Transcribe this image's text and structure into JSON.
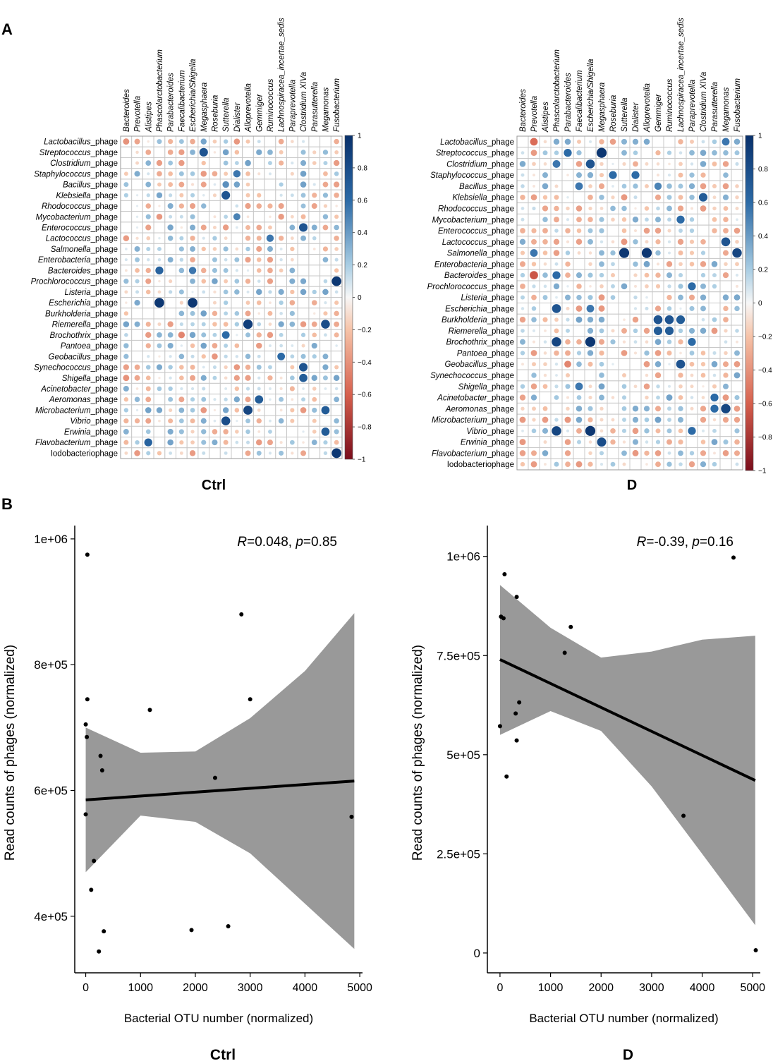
{
  "panel_labels": {
    "a": "A",
    "b": "B"
  },
  "colors": {
    "strong_pos": "#08306b",
    "mid_pos": "#2c6aa6",
    "light_pos": "#a9cde3",
    "neutral": "#f7f7f7",
    "light_neg": "#f6c3a8",
    "mid_neg": "#d6604d",
    "strong_neg": "#7a0d1b",
    "cell_border": "#c8c8c8",
    "ribbon": "#999999",
    "line": "#000000"
  },
  "chart_data": [
    {
      "type": "heatmap",
      "subtype": "correlation-circle-matrix",
      "title": "Ctrl",
      "columns": [
        "Bacteroides",
        "Prevotella",
        "Alistipes",
        "Phascolarctobacterium",
        "Parabacteroides",
        "Faecalibacterium",
        "Escherichia/Shigella",
        "Megasphaera",
        "Roseburia",
        "Sutterella",
        "Dialister",
        "Alloprevotella",
        "Gemmiger",
        "Ruminococcus",
        "Lachnospiracea_incertae_sedis",
        "Paraprevotella",
        "Clostridium XIVa",
        "Parasutterella",
        "Megamonas",
        "Fusobacterium"
      ],
      "rows": [
        "Lactobacillus_phage",
        "Streptococcus_phage",
        "Clostridium_phage",
        "Staphylococcus_phage",
        "Bacillus_phage",
        "Klebsiella_phage",
        "Rhodococcus_phage",
        "Mycobacterium_phage",
        "Enterococcus_phage",
        "Lactococcus_phage",
        "Salmonella_phage",
        "Enterobacteria_phage",
        "Bacteroides_phage",
        "Prochlorococcus_phage",
        "Listeria_phage",
        "Escherichia_phage",
        "Burkholderia_phage",
        "Riemerella_phage",
        "Brochothrix_phage",
        "Pantoea_phage",
        "Geobacillus_phage",
        "Synechococcus_phage",
        "Shigella_phage",
        "Acinetobacter_phage",
        "Aeromonas_phage",
        "Microbacterium_phage",
        "Vibrio_phage",
        "Erwinia_phage",
        "Flavobacterium_phage",
        "Iodobacteriophage"
      ],
      "rows_italic_part": [
        "Lactobacillus",
        "Streptococcus",
        "Clostridium",
        "Staphylococcus",
        "Bacillus",
        "Klebsiella",
        "Rhodococcus",
        "Mycobacterium",
        "Enterococcus",
        "Lactococcus",
        "Salmonella",
        "Enterobacteria",
        "Bacteroides",
        "Prochlorococcus",
        "Listeria",
        "Escherichia",
        "Burkholderia",
        "Riemerella",
        "Brochothrix",
        "Pantoea",
        "Geobacillus",
        "Synechococcus",
        "Shigella",
        "Acinetobacter",
        "Aeromonas",
        "Microbacterium",
        "Vibrio",
        "Erwinia",
        "Flavobacterium",
        ""
      ],
      "strong_cells": [
        {
          "row": 1,
          "col": 7,
          "value": 0.75
        },
        {
          "row": 3,
          "col": 10,
          "value": 0.55
        },
        {
          "row": 4,
          "col": 9,
          "value": 0.45
        },
        {
          "row": 5,
          "col": 9,
          "value": 0.75
        },
        {
          "row": 7,
          "col": 10,
          "value": 0.5
        },
        {
          "row": 8,
          "col": 16,
          "value": 0.75
        },
        {
          "row": 9,
          "col": 13,
          "value": 0.55
        },
        {
          "row": 12,
          "col": 3,
          "value": 0.65
        },
        {
          "row": 12,
          "col": 6,
          "value": 0.55
        },
        {
          "row": 13,
          "col": 19,
          "value": 0.95
        },
        {
          "row": 15,
          "col": 3,
          "value": 0.95
        },
        {
          "row": 15,
          "col": 6,
          "value": 0.95
        },
        {
          "row": 17,
          "col": 11,
          "value": 0.9
        },
        {
          "row": 17,
          "col": 18,
          "value": 0.8
        },
        {
          "row": 18,
          "col": 9,
          "value": 0.6
        },
        {
          "row": 18,
          "col": 5,
          "value": -0.45
        },
        {
          "row": 20,
          "col": 14,
          "value": 0.6
        },
        {
          "row": 21,
          "col": 16,
          "value": 0.75
        },
        {
          "row": 22,
          "col": 16,
          "value": 0.7
        },
        {
          "row": 24,
          "col": 12,
          "value": 0.7
        },
        {
          "row": 25,
          "col": 11,
          "value": 0.85
        },
        {
          "row": 25,
          "col": 18,
          "value": 0.7
        },
        {
          "row": 26,
          "col": 9,
          "value": 0.8
        },
        {
          "row": 27,
          "col": 18,
          "value": 0.7
        },
        {
          "row": 28,
          "col": 2,
          "value": 0.65
        },
        {
          "row": 29,
          "col": 19,
          "value": 0.95
        },
        {
          "row": 1,
          "col": 2,
          "value": -0.3
        },
        {
          "row": 0,
          "col": 0,
          "value": -0.4
        },
        {
          "row": 22,
          "col": 0,
          "value": -0.4
        }
      ],
      "colorbar": {
        "range": [
          -1,
          1
        ],
        "ticks": [
          "1",
          "0.8",
          "0.6",
          "0.4",
          "0.2",
          "0",
          "−0.2",
          "−0.4",
          "−0.6",
          "−0.8",
          "−1"
        ]
      }
    },
    {
      "type": "heatmap",
      "subtype": "correlation-circle-matrix",
      "title": "D",
      "columns": [
        "Bacteroides",
        "Prevotella",
        "Alistipes",
        "Phascolarctobacterium",
        "Parabacteroides",
        "Faecalibacterium",
        "Escherichia/Shigella",
        "Megasphaera",
        "Roseburia",
        "Sutterella",
        "Dialister",
        "Alloprevotella",
        "Gemmiger",
        "Ruminococcus",
        "Lachnospiracea_incertae_sedis",
        "Paraprevotella",
        "Clostridium XIVa",
        "Parasutterella",
        "Megamonas",
        "Fusobacterium"
      ],
      "rows": [
        "Lactobacillus_phage",
        "Streptococcus_phage",
        "Clostridium_phage",
        "Staphylococcus_phage",
        "Bacillus_phage",
        "Klebsiella_phage",
        "Rhodococcus_phage",
        "Mycobacterium_phage",
        "Enterococcus_phage",
        "Lactococcus_phage",
        "Salmonella_phage",
        "Enterobacteria_phage",
        "Bacteroides_phage",
        "Prochlorococcus_phage",
        "Listeria_phage",
        "Escherichia_phage",
        "Burkholderia_phage",
        "Riemerella_phage",
        "Brochothrix_phage",
        "Pantoea_phage",
        "Geobacillus_phage",
        "Synechococcus_phage",
        "Shigella_phage",
        "Acinetobacter_phage",
        "Aeromonas_phage",
        "Microbacterium_phage",
        "Vibrio_phage",
        "Erwinia_phage",
        "Flavobacterium_phage",
        "Iodobacteriophage"
      ],
      "rows_italic_part": [
        "Lactobacillus",
        "Streptococcus",
        "Clostridium",
        "Staphylococcus",
        "Bacillus",
        "Klebsiella",
        "Rhodococcus",
        "Mycobacterium",
        "Enterococcus",
        "Lactococcus",
        "Salmonella",
        "Enterobacteria",
        "Bacteroides",
        "Prochlorococcus",
        "Listeria",
        "Escherichia",
        "Burkholderia",
        "Riemerella",
        "Brochothrix",
        "Pantoea",
        "Geobacillus",
        "Synechococcus",
        "Shigella",
        "Acinetobacter",
        "Aeromonas",
        "Microbacterium",
        "Vibrio",
        "Erwinia",
        "Flavobacterium",
        ""
      ],
      "strong_cells": [
        {
          "row": 0,
          "col": 1,
          "value": -0.55
        },
        {
          "row": 0,
          "col": 18,
          "value": 0.55
        },
        {
          "row": 1,
          "col": 4,
          "value": 0.6
        },
        {
          "row": 1,
          "col": 7,
          "value": 0.95
        },
        {
          "row": 2,
          "col": 3,
          "value": 0.55
        },
        {
          "row": 2,
          "col": 6,
          "value": 0.75
        },
        {
          "row": 3,
          "col": 8,
          "value": 0.6
        },
        {
          "row": 3,
          "col": 10,
          "value": 0.6
        },
        {
          "row": 4,
          "col": 5,
          "value": 0.55
        },
        {
          "row": 4,
          "col": 12,
          "value": 0.5
        },
        {
          "row": 5,
          "col": 16,
          "value": 0.7
        },
        {
          "row": 7,
          "col": 14,
          "value": 0.6
        },
        {
          "row": 9,
          "col": 18,
          "value": 0.75
        },
        {
          "row": 10,
          "col": 1,
          "value": 0.55
        },
        {
          "row": 10,
          "col": 9,
          "value": 0.95
        },
        {
          "row": 10,
          "col": 11,
          "value": 0.95
        },
        {
          "row": 10,
          "col": 19,
          "value": 0.85
        },
        {
          "row": 12,
          "col": 1,
          "value": -0.65
        },
        {
          "row": 12,
          "col": 3,
          "value": 0.6
        },
        {
          "row": 13,
          "col": 15,
          "value": 0.6
        },
        {
          "row": 15,
          "col": 3,
          "value": 0.75
        },
        {
          "row": 15,
          "col": 6,
          "value": 0.55
        },
        {
          "row": 16,
          "col": 12,
          "value": 0.75
        },
        {
          "row": 16,
          "col": 13,
          "value": 0.75
        },
        {
          "row": 16,
          "col": 14,
          "value": 0.7
        },
        {
          "row": 17,
          "col": 12,
          "value": 0.7
        },
        {
          "row": 17,
          "col": 13,
          "value": 0.7
        },
        {
          "row": 18,
          "col": 3,
          "value": 0.85
        },
        {
          "row": 18,
          "col": 6,
          "value": 0.95
        },
        {
          "row": 18,
          "col": 15,
          "value": 0.6
        },
        {
          "row": 20,
          "col": 14,
          "value": 0.75
        },
        {
          "row": 20,
          "col": 4,
          "value": -0.45
        },
        {
          "row": 22,
          "col": 5,
          "value": 0.55
        },
        {
          "row": 23,
          "col": 17,
          "value": 0.6
        },
        {
          "row": 24,
          "col": 17,
          "value": 0.6
        },
        {
          "row": 24,
          "col": 18,
          "value": 0.85
        },
        {
          "row": 26,
          "col": 3,
          "value": 0.85
        },
        {
          "row": 26,
          "col": 6,
          "value": 0.95
        },
        {
          "row": 26,
          "col": 15,
          "value": 0.6
        },
        {
          "row": 27,
          "col": 7,
          "value": 0.8
        }
      ],
      "colorbar": {
        "range": [
          -1,
          1
        ],
        "ticks": [
          "1",
          "0.8",
          "0.6",
          "0.4",
          "0.2",
          "0",
          "−0.2",
          "−0.4",
          "−0.6",
          "−0.8",
          "−1"
        ]
      }
    },
    {
      "type": "scatter",
      "title": "Ctrl",
      "annotation": {
        "r_label": "R",
        "r_value": "=0.048, ",
        "p_label": "p",
        "p_value": "=0.85"
      },
      "xlabel": "Bacterial OTU number (normalized)",
      "ylabel": "Read counts of phages (normalized)",
      "xlim": [
        -200,
        5050
      ],
      "ylim": [
        310000,
        1010000
      ],
      "xticks": [
        0,
        1000,
        2000,
        3000,
        4000,
        5000
      ],
      "xtick_labels": [
        "0",
        "1000",
        "2000",
        "3000",
        "4000",
        "5000"
      ],
      "yticks": [
        400000,
        600000,
        800000,
        1000000
      ],
      "ytick_labels": [
        "4e+05",
        "6e+05",
        "8e+05",
        "1e+06"
      ],
      "points": [
        [
          30,
          975000
        ],
        [
          30,
          745000
        ],
        [
          0,
          705000
        ],
        [
          20,
          685000
        ],
        [
          270,
          655000
        ],
        [
          300,
          632000
        ],
        [
          0,
          562000
        ],
        [
          150,
          488000
        ],
        [
          100,
          442000
        ],
        [
          330,
          376000
        ],
        [
          240,
          344000
        ],
        [
          1170,
          728000
        ],
        [
          1930,
          378000
        ],
        [
          2360,
          620000
        ],
        [
          2600,
          384000
        ],
        [
          2840,
          880000
        ],
        [
          3000,
          745000
        ],
        [
          4850,
          558000
        ]
      ],
      "fit": {
        "x": [
          0,
          4900
        ],
        "y": [
          585000,
          615000
        ]
      },
      "ci": {
        "x": [
          0,
          1000,
          2000,
          3000,
          4000,
          4900
        ],
        "upper": [
          700000,
          660000,
          662000,
          715000,
          790000,
          882000
        ],
        "lower": [
          470000,
          560000,
          550000,
          500000,
          420000,
          348000
        ]
      }
    },
    {
      "type": "scatter",
      "title": "D",
      "annotation": {
        "r_label": "R",
        "r_value": "=-0.39, ",
        "p_label": "p",
        "p_value": "=0.16"
      },
      "xlabel": "Bacterial OTU number (normalized)",
      "ylabel": "Read counts of phages (normalized)",
      "xlim": [
        -250,
        5150
      ],
      "ylim": [
        -50000,
        1060000
      ],
      "xticks": [
        0,
        1000,
        2000,
        3000,
        4000,
        5000
      ],
      "xtick_labels": [
        "0",
        "1000",
        "2000",
        "3000",
        "4000",
        "5000"
      ],
      "yticks": [
        0,
        250000,
        500000,
        750000,
        1000000
      ],
      "ytick_labels": [
        "0",
        "2.5e+05",
        "5e+05",
        "7.5e+05",
        "1e+06"
      ],
      "points": [
        [
          90,
          955000
        ],
        [
          330,
          898000
        ],
        [
          20,
          848000
        ],
        [
          70,
          844000
        ],
        [
          1400,
          822000
        ],
        [
          1280,
          757000
        ],
        [
          380,
          632000
        ],
        [
          310,
          604000
        ],
        [
          0,
          572000
        ],
        [
          330,
          536000
        ],
        [
          130,
          445000
        ],
        [
          3630,
          346000
        ],
        [
          4620,
          997000
        ],
        [
          5060,
          7000
        ]
      ],
      "fit": {
        "x": [
          0,
          5050
        ],
        "y": [
          740000,
          435000
        ]
      },
      "ci": {
        "x": [
          0,
          1000,
          2000,
          3000,
          4000,
          5050
        ],
        "upper": [
          928000,
          820000,
          745000,
          760000,
          790000,
          800000
        ],
        "lower": [
          550000,
          610000,
          560000,
          420000,
          250000,
          70000
        ]
      }
    }
  ]
}
